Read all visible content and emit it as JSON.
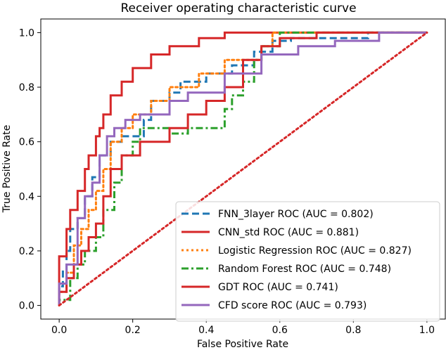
{
  "chart_data": {
    "type": "line",
    "title": "Receiver operating characteristic curve",
    "xlabel": "False Positive Rate",
    "ylabel": "True Positive Rate",
    "xlim": [
      -0.05,
      1.05
    ],
    "ylim": [
      -0.05,
      1.05
    ],
    "xticks": [
      "0.0",
      "0.2",
      "0.4",
      "0.6",
      "0.8",
      "1.0"
    ],
    "yticks": [
      "0.0",
      "0.2",
      "0.4",
      "0.6",
      "0.8",
      "1.0"
    ],
    "grid": false,
    "legend_position": "lower-right",
    "series": [
      {
        "name": "FNN_3layer ROC (AUC = 0.802)",
        "color": "#1f77b4",
        "dash": "dashed",
        "x": [
          0,
          0,
          0.01,
          0.01,
          0.02,
          0.02,
          0.03,
          0.03,
          0.05,
          0.05,
          0.07,
          0.07,
          0.09,
          0.09,
          0.11,
          0.11,
          0.14,
          0.14,
          0.17,
          0.17,
          0.23,
          0.23,
          0.25,
          0.25,
          0.3,
          0.3,
          0.33,
          0.33,
          0.4,
          0.4,
          0.47,
          0.47,
          0.53,
          0.53,
          0.58,
          0.58,
          0.63,
          0.63,
          0.84,
          0.84,
          1.0
        ],
        "y": [
          0,
          0.07,
          0.07,
          0.13,
          0.13,
          0.2,
          0.2,
          0.28,
          0.28,
          0.32,
          0.32,
          0.4,
          0.4,
          0.47,
          0.47,
          0.55,
          0.55,
          0.6,
          0.6,
          0.62,
          0.62,
          0.68,
          0.68,
          0.75,
          0.75,
          0.78,
          0.78,
          0.82,
          0.82,
          0.85,
          0.85,
          0.88,
          0.88,
          0.93,
          0.93,
          0.97,
          0.97,
          0.98,
          0.98,
          1.0,
          1.0
        ]
      },
      {
        "name": "CNN_std ROC (AUC = 0.881)",
        "color": "#d62728",
        "dash": "solid",
        "x": [
          0,
          0,
          0.02,
          0.02,
          0.03,
          0.03,
          0.05,
          0.05,
          0.07,
          0.07,
          0.08,
          0.08,
          0.1,
          0.1,
          0.11,
          0.11,
          0.12,
          0.12,
          0.14,
          0.14,
          0.17,
          0.17,
          0.2,
          0.2,
          0.25,
          0.25,
          0.3,
          0.3,
          0.38,
          0.38,
          0.45,
          0.45,
          0.75,
          0.75,
          1.0
        ],
        "y": [
          0,
          0.18,
          0.18,
          0.28,
          0.28,
          0.35,
          0.35,
          0.42,
          0.42,
          0.5,
          0.5,
          0.55,
          0.55,
          0.62,
          0.62,
          0.65,
          0.65,
          0.7,
          0.7,
          0.77,
          0.77,
          0.82,
          0.82,
          0.87,
          0.87,
          0.92,
          0.92,
          0.95,
          0.95,
          0.98,
          0.98,
          1.0,
          1.0,
          1.0,
          1.0
        ]
      },
      {
        "name": "Logistic Regression ROC (AUC = 0.827)",
        "color": "#ff7f0e",
        "dash": "dotted",
        "x": [
          0,
          0,
          0.02,
          0.02,
          0.04,
          0.04,
          0.06,
          0.06,
          0.08,
          0.08,
          0.1,
          0.1,
          0.12,
          0.12,
          0.14,
          0.14,
          0.17,
          0.17,
          0.2,
          0.2,
          0.25,
          0.25,
          0.3,
          0.3,
          0.38,
          0.38,
          0.45,
          0.45,
          0.55,
          0.55,
          0.58,
          0.58,
          1.0
        ],
        "y": [
          0,
          0.05,
          0.05,
          0.12,
          0.12,
          0.22,
          0.22,
          0.28,
          0.28,
          0.35,
          0.35,
          0.42,
          0.42,
          0.5,
          0.5,
          0.6,
          0.6,
          0.65,
          0.65,
          0.7,
          0.7,
          0.75,
          0.75,
          0.8,
          0.8,
          0.85,
          0.85,
          0.9,
          0.9,
          0.95,
          0.95,
          1.0,
          1.0
        ]
      },
      {
        "name": "Random Forest ROC (AUC = 0.748)",
        "color": "#2ca02c",
        "dash": "dashdot",
        "x": [
          0,
          0,
          0.03,
          0.03,
          0.05,
          0.05,
          0.07,
          0.07,
          0.1,
          0.1,
          0.12,
          0.12,
          0.15,
          0.15,
          0.17,
          0.17,
          0.2,
          0.2,
          0.22,
          0.22,
          0.3,
          0.3,
          0.35,
          0.35,
          0.45,
          0.45,
          0.47,
          0.47,
          0.5,
          0.5,
          0.53,
          0.53,
          0.55,
          0.55,
          0.6,
          0.6,
          1.0
        ],
        "y": [
          0,
          0.02,
          0.02,
          0.1,
          0.1,
          0.15,
          0.15,
          0.2,
          0.2,
          0.25,
          0.25,
          0.35,
          0.35,
          0.45,
          0.45,
          0.55,
          0.55,
          0.6,
          0.6,
          0.65,
          0.65,
          0.63,
          0.63,
          0.65,
          0.65,
          0.72,
          0.72,
          0.77,
          0.77,
          0.82,
          0.82,
          0.9,
          0.9,
          0.95,
          0.95,
          1.0,
          1.0
        ]
      },
      {
        "name": "GDT ROC (AUC = 0.741)",
        "color": "#d62728",
        "dash": "solid",
        "x": [
          0,
          0,
          0.02,
          0.02,
          0.04,
          0.04,
          0.06,
          0.06,
          0.08,
          0.08,
          0.1,
          0.1,
          0.12,
          0.12,
          0.14,
          0.14,
          0.17,
          0.17,
          0.22,
          0.22,
          0.3,
          0.3,
          0.35,
          0.35,
          0.4,
          0.4,
          0.45,
          0.45,
          0.5,
          0.5,
          0.55,
          0.55,
          0.6,
          0.6,
          0.7,
          0.7,
          1.0
        ],
        "y": [
          0,
          0.05,
          0.05,
          0.1,
          0.1,
          0.15,
          0.15,
          0.2,
          0.2,
          0.25,
          0.25,
          0.3,
          0.3,
          0.4,
          0.4,
          0.5,
          0.5,
          0.55,
          0.55,
          0.6,
          0.6,
          0.65,
          0.65,
          0.7,
          0.7,
          0.75,
          0.75,
          0.8,
          0.8,
          0.9,
          0.9,
          0.95,
          0.95,
          0.98,
          0.98,
          1.0,
          1.0
        ]
      },
      {
        "name": "CFD score ROC (AUC = 0.793)",
        "color": "#9467bd",
        "dash": "solid",
        "x": [
          0,
          0,
          0.02,
          0.02,
          0.05,
          0.05,
          0.07,
          0.07,
          0.09,
          0.09,
          0.11,
          0.11,
          0.13,
          0.13,
          0.15,
          0.15,
          0.18,
          0.18,
          0.22,
          0.22,
          0.3,
          0.3,
          0.35,
          0.35,
          0.45,
          0.45,
          0.55,
          0.55,
          0.65,
          0.65,
          0.75,
          0.75,
          0.87,
          0.87,
          1.0
        ],
        "y": [
          0,
          0.08,
          0.08,
          0.15,
          0.15,
          0.32,
          0.32,
          0.4,
          0.4,
          0.45,
          0.45,
          0.55,
          0.55,
          0.62,
          0.62,
          0.65,
          0.65,
          0.68,
          0.68,
          0.7,
          0.7,
          0.75,
          0.75,
          0.78,
          0.78,
          0.85,
          0.85,
          0.92,
          0.92,
          0.95,
          0.95,
          0.97,
          0.97,
          1.0,
          1.0
        ]
      },
      {
        "name": "",
        "color": "#d62728",
        "dash": "dotted",
        "x": [
          0,
          1
        ],
        "y": [
          0,
          1
        ]
      }
    ]
  }
}
